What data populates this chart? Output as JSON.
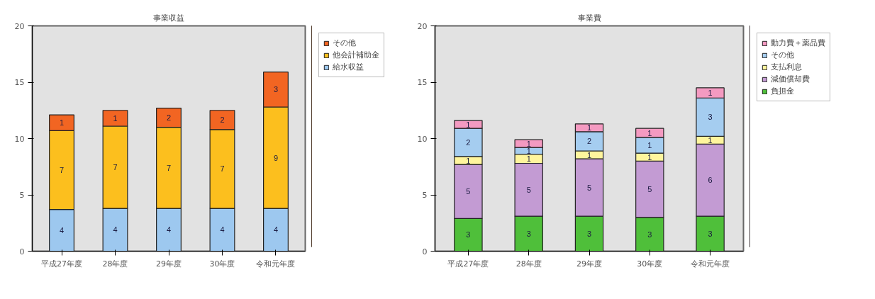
{
  "chart_data": [
    {
      "type": "bar",
      "stacked": true,
      "title": "事業収益",
      "categories": [
        "平成27年度",
        "28年度",
        "29年度",
        "30年度",
        "令和元年度"
      ],
      "ylim": [
        0,
        20
      ],
      "yticks": [
        0,
        5,
        10,
        15,
        20
      ],
      "grid": false,
      "legend": "top right",
      "series": [
        {
          "name": "給水収益",
          "color": "#9dc8ef",
          "values": [
            3.7,
            3.8,
            3.8,
            3.8,
            3.8
          ],
          "value_labels": [
            "4",
            "4",
            "4",
            "4",
            "4"
          ]
        },
        {
          "name": "他会計補助金",
          "color": "#fcbf1e",
          "values": [
            7.0,
            7.3,
            7.2,
            7.0,
            9.0
          ],
          "value_labels": [
            "7",
            "7",
            "7",
            "7",
            "9"
          ]
        },
        {
          "name": "その他",
          "color": "#f26522",
          "values": [
            1.4,
            1.4,
            1.7,
            1.7,
            3.1
          ],
          "value_labels": [
            "1",
            "1",
            "2",
            "2",
            "3"
          ]
        }
      ]
    },
    {
      "type": "bar",
      "stacked": true,
      "title": "事業費",
      "categories": [
        "平成27年度",
        "28年度",
        "29年度",
        "30年度",
        "令和元年度"
      ],
      "ylim": [
        0,
        20
      ],
      "yticks": [
        0,
        5,
        10,
        15,
        20
      ],
      "grid": false,
      "legend": "top right",
      "series": [
        {
          "name": "負担金",
          "color": "#4fbf3a",
          "values": [
            2.9,
            3.1,
            3.1,
            3.0,
            3.1
          ],
          "value_labels": [
            "3",
            "3",
            "3",
            "3",
            "3"
          ]
        },
        {
          "name": "減価償却費",
          "color": "#c39bd3",
          "values": [
            4.8,
            4.7,
            5.1,
            5.0,
            6.4
          ],
          "value_labels": [
            "5",
            "5",
            "5",
            "5",
            "6"
          ]
        },
        {
          "name": "支払利息",
          "color": "#fff59d",
          "values": [
            0.7,
            0.8,
            0.7,
            0.7,
            0.7
          ],
          "value_labels": [
            "1",
            "1",
            "1",
            "1",
            "1"
          ]
        },
        {
          "name": "その他",
          "color": "#a5cdf0",
          "values": [
            2.5,
            0.6,
            1.7,
            1.4,
            3.4
          ],
          "value_labels": [
            "2",
            "1",
            "2",
            "1",
            "3"
          ]
        },
        {
          "name": "動力費＋薬品費",
          "color": "#f49ac1",
          "values": [
            0.7,
            0.7,
            0.7,
            0.8,
            0.9
          ],
          "value_labels": [
            "1",
            "1",
            "1",
            "1",
            "1"
          ]
        }
      ]
    }
  ]
}
